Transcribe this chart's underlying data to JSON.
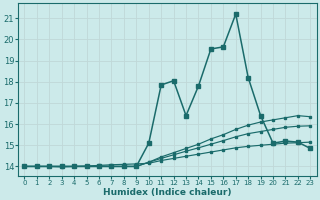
{
  "xlabel": "Humidex (Indice chaleur)",
  "xlim": [
    -0.5,
    23.5
  ],
  "ylim": [
    13.55,
    21.7
  ],
  "yticks": [
    14,
    15,
    16,
    17,
    18,
    19,
    20,
    21
  ],
  "xticks": [
    0,
    1,
    2,
    3,
    4,
    5,
    6,
    7,
    8,
    9,
    10,
    11,
    12,
    13,
    14,
    15,
    16,
    17,
    18,
    19,
    20,
    21,
    22,
    23
  ],
  "bg_color": "#cceaea",
  "grid_color": "#b0d0d0",
  "line_color": "#1a6b6b",
  "line_main": [
    14,
    14,
    14,
    14,
    14,
    14,
    14,
    14,
    14,
    14,
    15.1,
    17.85,
    18.05,
    16.4,
    17.8,
    19.55,
    19.65,
    21.2,
    18.2,
    16.4,
    15.1,
    15.2,
    15.15,
    14.85
  ],
  "line_hi": [
    14,
    14,
    14,
    14,
    14,
    14,
    14,
    14,
    14,
    14,
    14.2,
    14.45,
    14.65,
    14.85,
    15.05,
    15.3,
    15.5,
    15.75,
    15.95,
    16.1,
    16.2,
    16.3,
    16.4,
    16.35
  ],
  "line_mid": [
    14,
    14,
    14,
    14,
    14,
    14,
    14,
    14,
    14,
    14,
    14.2,
    14.38,
    14.55,
    14.72,
    14.88,
    15.05,
    15.22,
    15.4,
    15.55,
    15.65,
    15.75,
    15.85,
    15.9,
    15.92
  ],
  "line_lo": [
    14,
    14,
    14,
    13.98,
    14.0,
    14.02,
    14.05,
    14.08,
    14.1,
    14.12,
    14.15,
    14.28,
    14.38,
    14.48,
    14.58,
    14.68,
    14.78,
    14.88,
    14.95,
    15.0,
    15.05,
    15.1,
    15.12,
    15.15
  ]
}
